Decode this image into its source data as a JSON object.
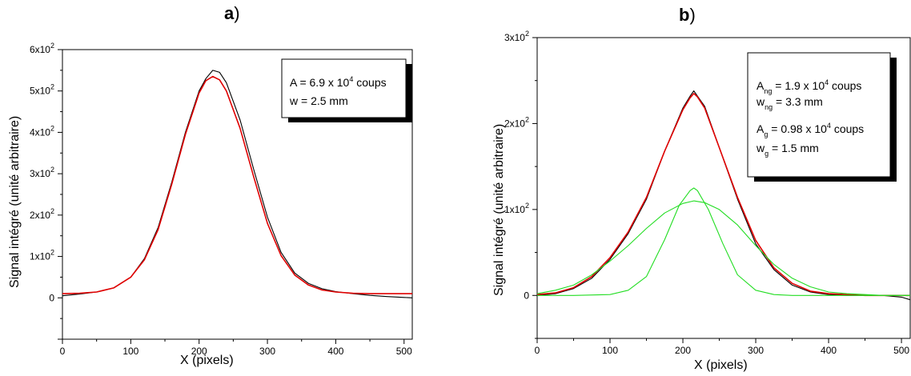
{
  "panels": [
    {
      "label": "a",
      "xlabel": "X (pixels)",
      "ylabel": "Signal intégré (unité arbitraire)",
      "legend": [
        {
          "pre": "A = 6.9 x 10",
          "sup": "4",
          "post": " coups"
        },
        {
          "pre": "w = 2.5 mm"
        }
      ]
    },
    {
      "label": "b",
      "xlabel": "X (pixels)",
      "ylabel": "Signal intégré (unité arbitraire)",
      "legend": [
        {
          "pre": "A",
          "sub": "ng",
          "mid": " = 1.9 x 10",
          "sup": "4",
          "post": " coups"
        },
        {
          "pre": "w",
          "sub": "ng",
          "mid": " = 3.3 mm"
        },
        {
          "pre": "A",
          "sub": "g",
          "mid": " = 0.98 x 10",
          "sup": "4",
          "post": " coups"
        },
        {
          "pre": "w",
          "sub": "g",
          "mid": " = 1.5 mm"
        }
      ]
    }
  ],
  "chart_data": [
    {
      "type": "line",
      "title": "a)",
      "xlabel": "X (pixels)",
      "ylabel": "Signal intégré (unité arbitraire)",
      "xlim": [
        0,
        512
      ],
      "ylim": [
        -100,
        600
      ],
      "xticks": [
        0,
        100,
        200,
        300,
        400,
        500
      ],
      "yticks": [
        {
          "value": 0,
          "base": "0",
          "exp": ""
        },
        {
          "value": 100,
          "base": "1x10",
          "exp": "2"
        },
        {
          "value": 200,
          "base": "2x10",
          "exp": "2"
        },
        {
          "value": 300,
          "base": "3x10",
          "exp": "2"
        },
        {
          "value": 400,
          "base": "4x10",
          "exp": "2"
        },
        {
          "value": 500,
          "base": "5x10",
          "exp": "2"
        },
        {
          "value": 600,
          "base": "6x10",
          "exp": "2"
        }
      ],
      "series": [
        {
          "color": "#000000",
          "kind": "data",
          "x": [
            0,
            25,
            50,
            75,
            100,
            120,
            140,
            160,
            180,
            200,
            210,
            220,
            230,
            240,
            260,
            280,
            300,
            320,
            340,
            360,
            380,
            400,
            425,
            450,
            475,
            500,
            512
          ],
          "y": [
            5,
            9,
            14,
            24,
            50,
            95,
            170,
            280,
            400,
            500,
            530,
            550,
            545,
            520,
            430,
            310,
            195,
            110,
            60,
            35,
            22,
            15,
            10,
            6,
            3,
            1,
            0
          ]
        },
        {
          "color": "#e00000",
          "kind": "fit",
          "x": [
            0,
            25,
            50,
            75,
            100,
            120,
            140,
            160,
            180,
            200,
            210,
            220,
            230,
            240,
            260,
            280,
            300,
            320,
            340,
            360,
            380,
            400,
            425,
            450,
            475,
            500,
            512
          ],
          "y": [
            10,
            11,
            14,
            24,
            50,
            92,
            165,
            275,
            395,
            495,
            525,
            535,
            527,
            500,
            410,
            292,
            180,
            102,
            55,
            31,
            19,
            14,
            11,
            10,
            10,
            10,
            10
          ]
        }
      ]
    },
    {
      "type": "line",
      "title": "b)",
      "xlabel": "X (pixels)",
      "ylabel": "Signal intégré (unité arbitraire)",
      "xlim": [
        0,
        512
      ],
      "ylim": [
        -50,
        300
      ],
      "xticks": [
        0,
        100,
        200,
        300,
        400,
        500
      ],
      "yticks": [
        {
          "value": 0,
          "base": "0",
          "exp": ""
        },
        {
          "value": 100,
          "base": "1x10",
          "exp": "2"
        },
        {
          "value": 200,
          "base": "2x10",
          "exp": "2"
        },
        {
          "value": 300,
          "base": "3x10",
          "exp": "2"
        }
      ],
      "series": [
        {
          "color": "#000000",
          "kind": "data",
          "x": [
            0,
            25,
            50,
            75,
            100,
            125,
            150,
            175,
            200,
            210,
            215,
            220,
            230,
            250,
            275,
            300,
            325,
            350,
            375,
            400,
            425,
            450,
            475,
            500,
            512
          ],
          "y": [
            0,
            2,
            8,
            20,
            42,
            72,
            112,
            168,
            218,
            232,
            238,
            232,
            220,
            172,
            112,
            60,
            30,
            12,
            4,
            1,
            0,
            0,
            0,
            -2,
            -5
          ]
        },
        {
          "color": "#e00000",
          "kind": "fit",
          "x": [
            0,
            25,
            50,
            75,
            100,
            125,
            150,
            175,
            200,
            210,
            215,
            220,
            230,
            250,
            275,
            300,
            325,
            350,
            375,
            400,
            425,
            450,
            475,
            500,
            512
          ],
          "y": [
            1,
            3,
            9,
            22,
            44,
            74,
            114,
            168,
            216,
            230,
            235,
            231,
            218,
            172,
            114,
            64,
            32,
            14,
            5,
            2,
            1,
            0,
            0,
            0,
            0
          ]
        },
        {
          "color": "#22dd22",
          "kind": "component",
          "x": [
            0,
            25,
            50,
            75,
            100,
            125,
            150,
            175,
            200,
            215,
            230,
            250,
            275,
            300,
            325,
            350,
            375,
            400,
            425,
            450,
            475,
            500,
            512
          ],
          "y": [
            2,
            6,
            12,
            24,
            40,
            58,
            78,
            96,
            107,
            110,
            108,
            100,
            82,
            58,
            36,
            20,
            10,
            4,
            2,
            1,
            0,
            0,
            0
          ]
        },
        {
          "color": "#22dd22",
          "kind": "component",
          "x": [
            0,
            50,
            100,
            125,
            150,
            175,
            195,
            210,
            215,
            220,
            235,
            255,
            275,
            300,
            325,
            350,
            400,
            450,
            512
          ],
          "y": [
            0,
            0,
            1,
            6,
            22,
            65,
            105,
            122,
            125,
            122,
            100,
            60,
            24,
            6,
            1,
            0,
            0,
            0,
            0
          ]
        }
      ]
    }
  ]
}
